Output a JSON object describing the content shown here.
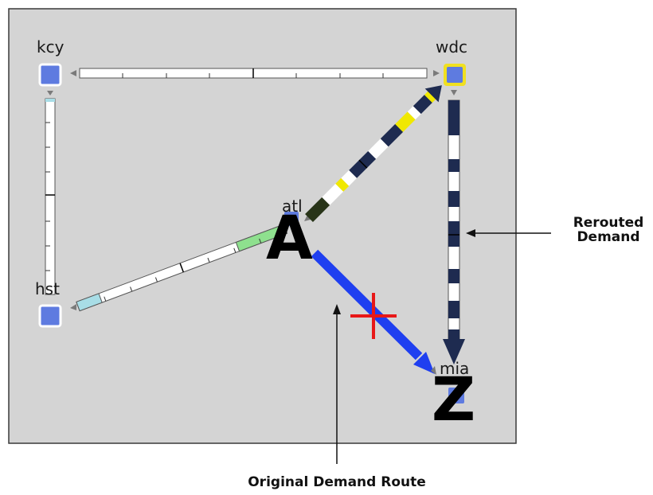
{
  "nodes": {
    "kcy": "kcy",
    "wdc": "wdc",
    "hst": "hst",
    "atl": "atl",
    "mia": "mia"
  },
  "endpoints": {
    "origin": "A",
    "destination": "Z"
  },
  "callouts": {
    "rerouted_line1": "Rerouted",
    "rerouted_line2": "Demand",
    "original": "Original Demand Route"
  },
  "colors": {
    "panel_bg": "#d4d4d4",
    "node_fill": "#5e7be0",
    "selected_node_border": "#f0e020",
    "original_route": "#1f3ff0",
    "rerouted_route": "#1e2b50",
    "failure_marker": "#e81818",
    "util_yellow": "#f0e800",
    "util_green": "#8ee08e",
    "util_cyan": "#a8dde6"
  }
}
